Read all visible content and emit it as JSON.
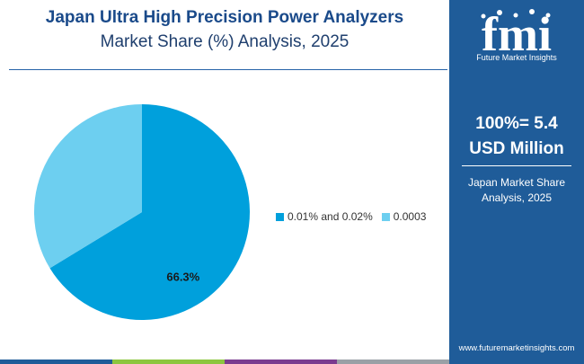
{
  "header": {
    "title_line1": "Japan Ultra High Precision Power Analyzers",
    "title_line2": "Market Share (%) Analysis, 2025"
  },
  "sidebar": {
    "logo_text": "fmi",
    "logo_subtext": "Future Market Insights",
    "total_line1": "100%= 5.4",
    "total_line2": "USD Million",
    "caption_line1": "Japan Market Share",
    "caption_line2": "Analysis, 2025",
    "url": "www.futuremarketinsights.com"
  },
  "colors": {
    "primary": "#00a0dc",
    "secondary": "#6dcff0",
    "sidebar_bg": "#1f5c99",
    "title": "#1a4a8a",
    "bottom_bar": [
      "#1f5c99",
      "#8cc63f",
      "#7a3b8f",
      "#9aa0a6"
    ]
  },
  "chart_data": {
    "type": "pie",
    "categories": [
      "0.01% and 0.02%",
      "0.0003"
    ],
    "values": [
      66.3,
      33.7
    ],
    "data_labels": [
      "66.3%",
      ""
    ],
    "legend_position": "right",
    "title": "Japan Ultra High Precision Power Analyzers Market Share (%) Analysis, 2025"
  }
}
